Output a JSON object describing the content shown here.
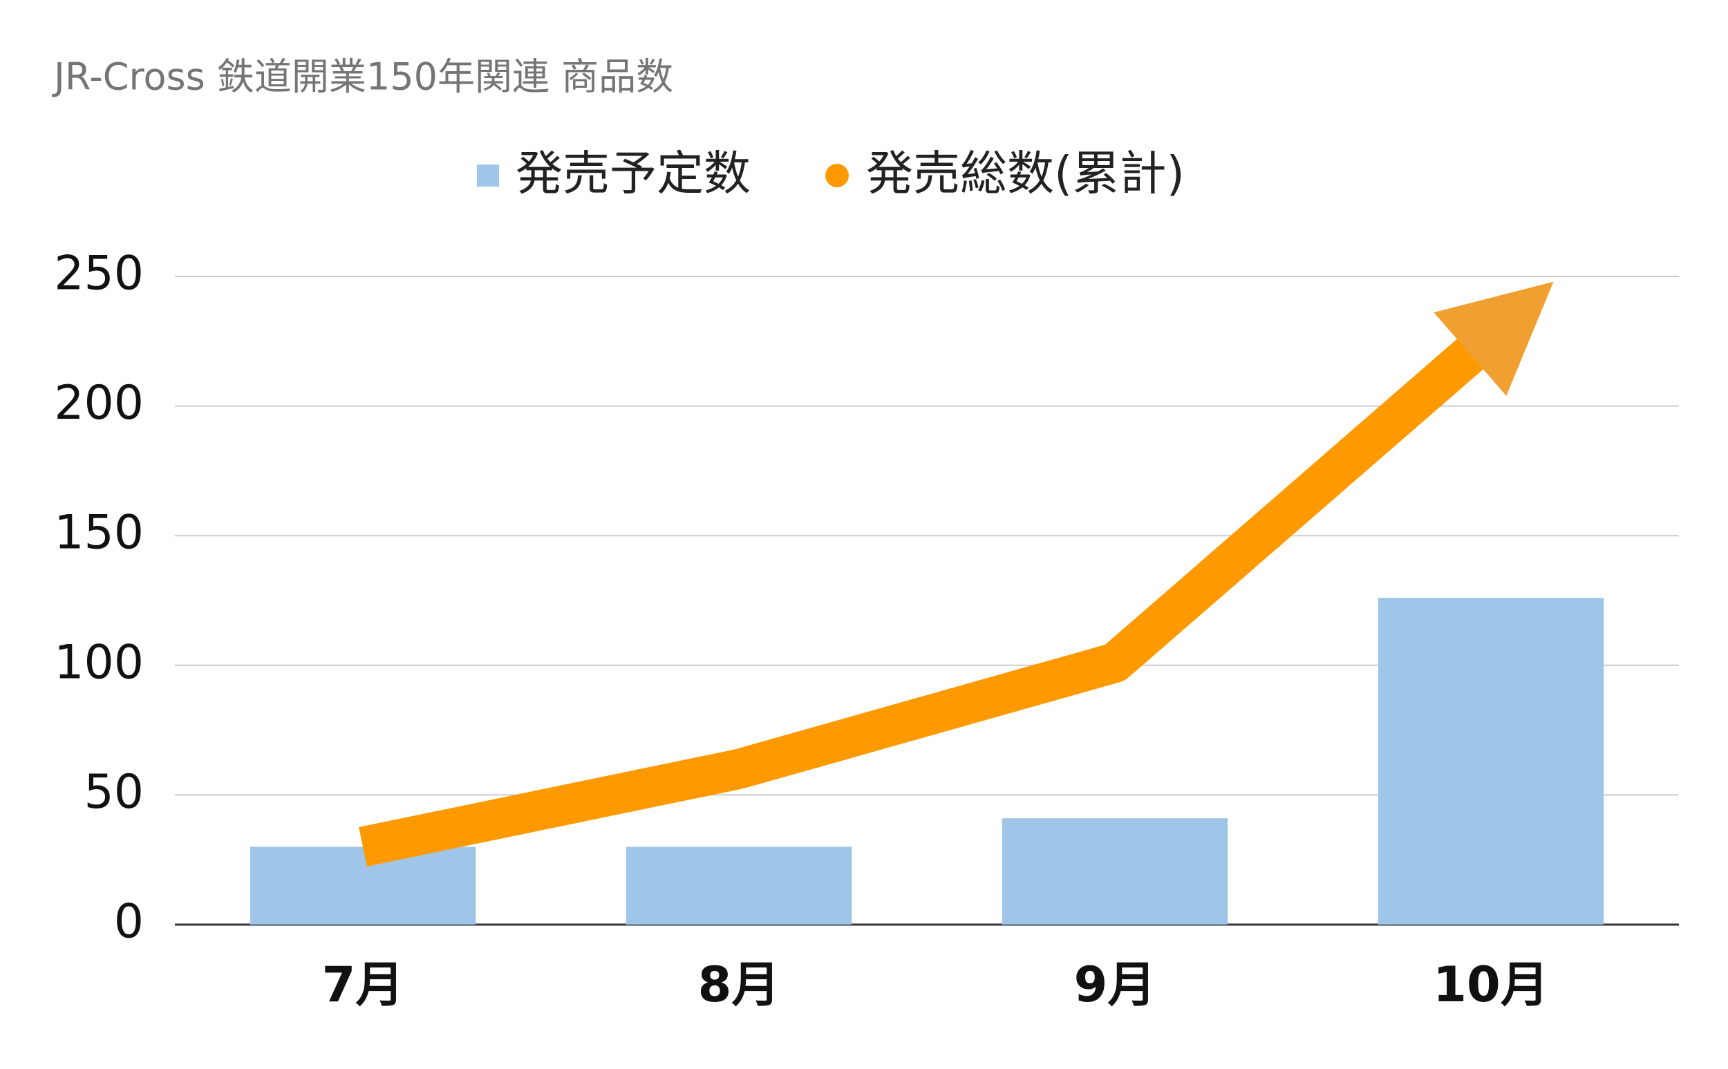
{
  "chart_data": {
    "type": "bar_line",
    "title": "JR-Cross 鉄道開業150年関連 商品数",
    "categories": [
      "7月",
      "8月",
      "9月",
      "10月"
    ],
    "series": [
      {
        "name": "発売予定数",
        "color": "#9fc5e8",
        "type": "bar",
        "values": [
          30,
          30,
          41,
          126
        ]
      },
      {
        "name": "発売総数(累計)",
        "color": "#ff9900",
        "type": "line",
        "values": [
          30,
          60,
          101,
          227
        ]
      }
    ],
    "ylim": [
      0,
      250
    ],
    "yticks": [
      0,
      50,
      100,
      150,
      200,
      250
    ],
    "grid": true
  }
}
